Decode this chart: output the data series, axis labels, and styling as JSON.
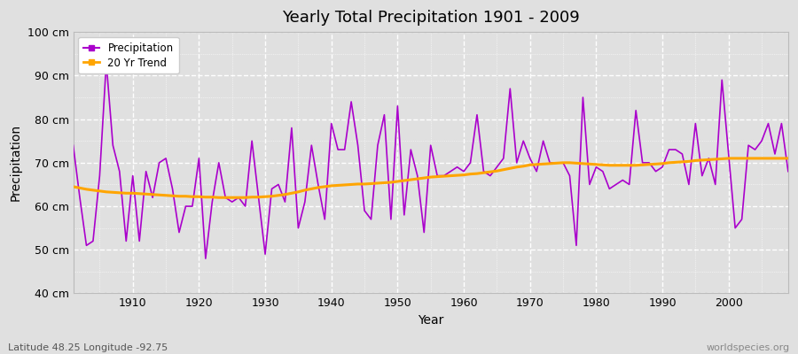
{
  "title": "Yearly Total Precipitation 1901 - 2009",
  "xlabel": "Year",
  "ylabel": "Precipitation",
  "subtitle_left": "Latitude 48.25 Longitude -92.75",
  "subtitle_right": "worldspecies.org",
  "precip_color": "#AA00CC",
  "trend_color": "#FFA500",
  "bg_color": "#E0E0E0",
  "ylim": [
    40,
    100
  ],
  "yticks": [
    40,
    50,
    60,
    70,
    80,
    90,
    100
  ],
  "ytick_labels": [
    "40 cm",
    "50 cm",
    "60 cm",
    "70 cm",
    "80 cm",
    "90 cm",
    "100 cm"
  ],
  "years": [
    1901,
    1902,
    1903,
    1904,
    1905,
    1906,
    1907,
    1908,
    1909,
    1910,
    1911,
    1912,
    1913,
    1914,
    1915,
    1916,
    1917,
    1918,
    1919,
    1920,
    1921,
    1922,
    1923,
    1924,
    1925,
    1926,
    1927,
    1928,
    1929,
    1930,
    1931,
    1932,
    1933,
    1934,
    1935,
    1936,
    1937,
    1938,
    1939,
    1940,
    1941,
    1942,
    1943,
    1944,
    1945,
    1946,
    1947,
    1948,
    1949,
    1950,
    1951,
    1952,
    1953,
    1954,
    1955,
    1956,
    1957,
    1958,
    1959,
    1960,
    1961,
    1962,
    1963,
    1964,
    1965,
    1966,
    1967,
    1968,
    1969,
    1970,
    1971,
    1972,
    1973,
    1974,
    1975,
    1976,
    1977,
    1978,
    1979,
    1980,
    1981,
    1982,
    1983,
    1984,
    1985,
    1986,
    1987,
    1988,
    1989,
    1990,
    1991,
    1992,
    1993,
    1994,
    1995,
    1996,
    1997,
    1998,
    1999,
    2000,
    2001,
    2002,
    2003,
    2004,
    2005,
    2006,
    2007,
    2008,
    2009
  ],
  "precip": [
    74,
    62,
    51,
    52,
    67,
    93,
    74,
    68,
    52,
    67,
    52,
    68,
    62,
    70,
    71,
    64,
    54,
    60,
    60,
    71,
    48,
    61,
    70,
    62,
    61,
    62,
    60,
    75,
    62,
    49,
    64,
    65,
    61,
    78,
    55,
    61,
    74,
    65,
    57,
    79,
    73,
    73,
    84,
    74,
    59,
    57,
    74,
    81,
    57,
    83,
    58,
    73,
    67,
    54,
    74,
    67,
    67,
    68,
    69,
    68,
    70,
    81,
    68,
    67,
    69,
    71,
    87,
    70,
    75,
    71,
    68,
    75,
    70,
    70,
    70,
    67,
    51,
    85,
    65,
    69,
    68,
    64,
    65,
    66,
    65,
    82,
    70,
    70,
    68,
    69,
    73,
    73,
    72,
    65,
    79,
    67,
    71,
    65,
    89,
    72,
    55,
    57,
    74,
    73,
    75,
    79,
    72,
    79,
    68
  ],
  "trend": [
    64.5,
    64.2,
    63.9,
    63.7,
    63.5,
    63.3,
    63.2,
    63.1,
    63.0,
    63.0,
    62.9,
    62.8,
    62.7,
    62.6,
    62.5,
    62.4,
    62.3,
    62.3,
    62.2,
    62.2,
    62.1,
    62.1,
    62.0,
    62.0,
    62.0,
    62.0,
    62.0,
    62.1,
    62.1,
    62.2,
    62.3,
    62.5,
    62.7,
    63.0,
    63.3,
    63.7,
    64.0,
    64.3,
    64.5,
    64.7,
    64.8,
    64.9,
    65.0,
    65.1,
    65.1,
    65.2,
    65.3,
    65.4,
    65.5,
    65.7,
    65.9,
    66.1,
    66.3,
    66.5,
    66.7,
    66.8,
    66.9,
    67.0,
    67.1,
    67.2,
    67.4,
    67.5,
    67.7,
    67.9,
    68.1,
    68.4,
    68.7,
    69.0,
    69.2,
    69.5,
    69.6,
    69.7,
    69.8,
    69.9,
    70.0,
    70.0,
    69.9,
    69.8,
    69.7,
    69.6,
    69.5,
    69.4,
    69.4,
    69.4,
    69.4,
    69.4,
    69.5,
    69.6,
    69.7,
    69.8,
    70.0,
    70.1,
    70.2,
    70.3,
    70.5,
    70.6,
    70.7,
    70.8,
    70.9,
    71.0,
    71.0,
    71.0,
    71.0,
    71.0,
    71.0,
    71.0,
    71.0,
    71.0,
    71.0
  ]
}
